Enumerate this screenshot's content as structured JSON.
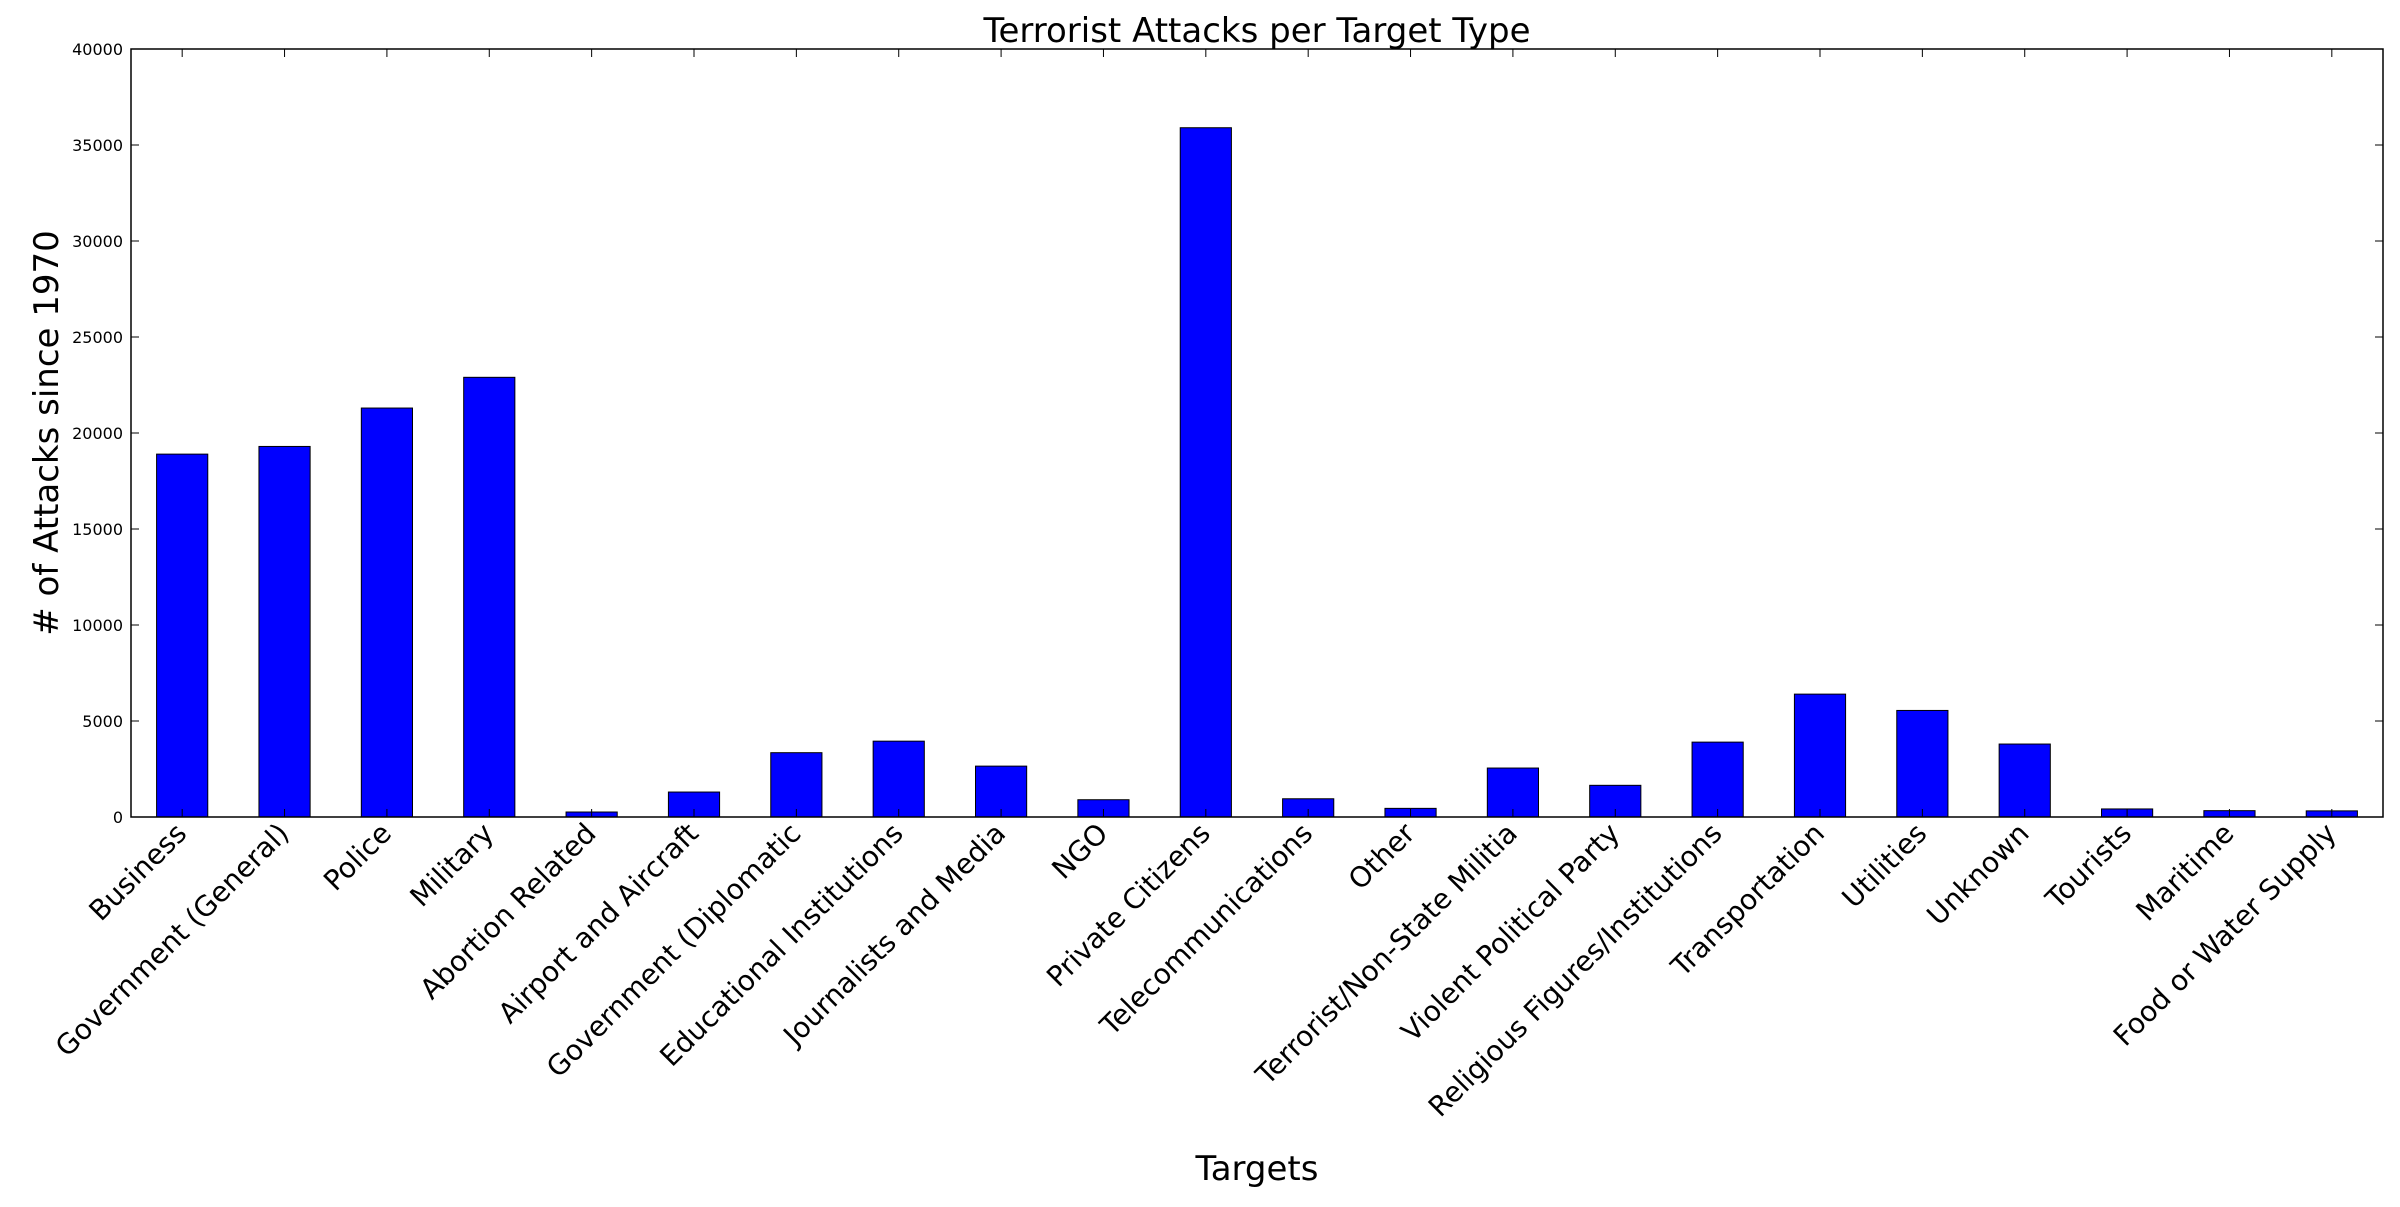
{
  "chart_data": {
    "type": "bar",
    "title": "Terrorist Attacks per Target Type",
    "xlabel": "Targets",
    "ylabel": "# of Attacks since 1970",
    "ylim": [
      0,
      40000
    ],
    "yticks": [
      0,
      5000,
      10000,
      15000,
      20000,
      25000,
      30000,
      35000,
      40000
    ],
    "categories": [
      "Business",
      "Government (General)",
      "Police",
      "Military",
      "Abortion Related",
      "Airport and Aircraft",
      "Government (Diplomatic",
      "Educational Institutions",
      "Journalists and Media",
      "NGO",
      "Private Citizens",
      "Telecommunications",
      "Other",
      "Terrorist/Non-State Militia",
      "Violent Political Party",
      "Religious Figures/Institutions",
      "Transportation",
      "Utilities",
      "Unknown",
      "Tourists",
      "Maritime",
      "Food or Water Supply"
    ],
    "values": [
      18900,
      19300,
      21300,
      22900,
      260,
      1300,
      3350,
      3950,
      2650,
      900,
      35900,
      950,
      450,
      2550,
      1650,
      3900,
      6400,
      5550,
      3800,
      420,
      330,
      320
    ],
    "grid": false,
    "legend": "none",
    "colors": {
      "bar_fill": "#0000ff",
      "bar_edge": "#000000",
      "axes": "#000000",
      "background": "#ffffff"
    }
  }
}
